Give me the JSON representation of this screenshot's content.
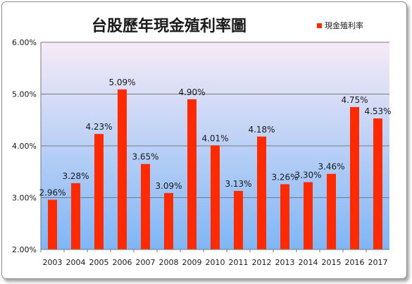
{
  "chart_data": {
    "type": "bar",
    "title": "台股歷年現金殖利率圖",
    "legend": {
      "label": "現金殖利率",
      "placement": "top-right"
    },
    "series": [
      {
        "name": "現金殖利率",
        "color": "#ff2a00",
        "values": [
          2.96,
          3.28,
          4.23,
          5.09,
          3.65,
          3.09,
          4.9,
          4.01,
          3.13,
          4.18,
          3.26,
          3.3,
          3.46,
          4.75,
          4.53
        ],
        "labels": [
          "2.96%",
          "3.28%",
          "4.23%",
          "5.09%",
          "3.65%",
          "3.09%",
          "4.90%",
          "4.01%",
          "3.13%",
          "4.18%",
          "3.26%",
          "3.30%",
          "3.46%",
          "4.75%",
          "4.53%"
        ]
      }
    ],
    "categories": [
      "2003",
      "2004",
      "2005",
      "2006",
      "2007",
      "2008",
      "2009",
      "2010",
      "2011",
      "2012",
      "2013",
      "2014",
      "2015",
      "2016",
      "2017"
    ],
    "ylim": [
      2,
      6
    ],
    "yticks": [
      2,
      3,
      4,
      5,
      6
    ],
    "ytick_labels": [
      "2.00%",
      "3.00%",
      "4.00%",
      "5.00%",
      "6.00%"
    ],
    "grid": true,
    "plot_background": [
      "#f6eaf6",
      "#7fb6f6"
    ]
  }
}
